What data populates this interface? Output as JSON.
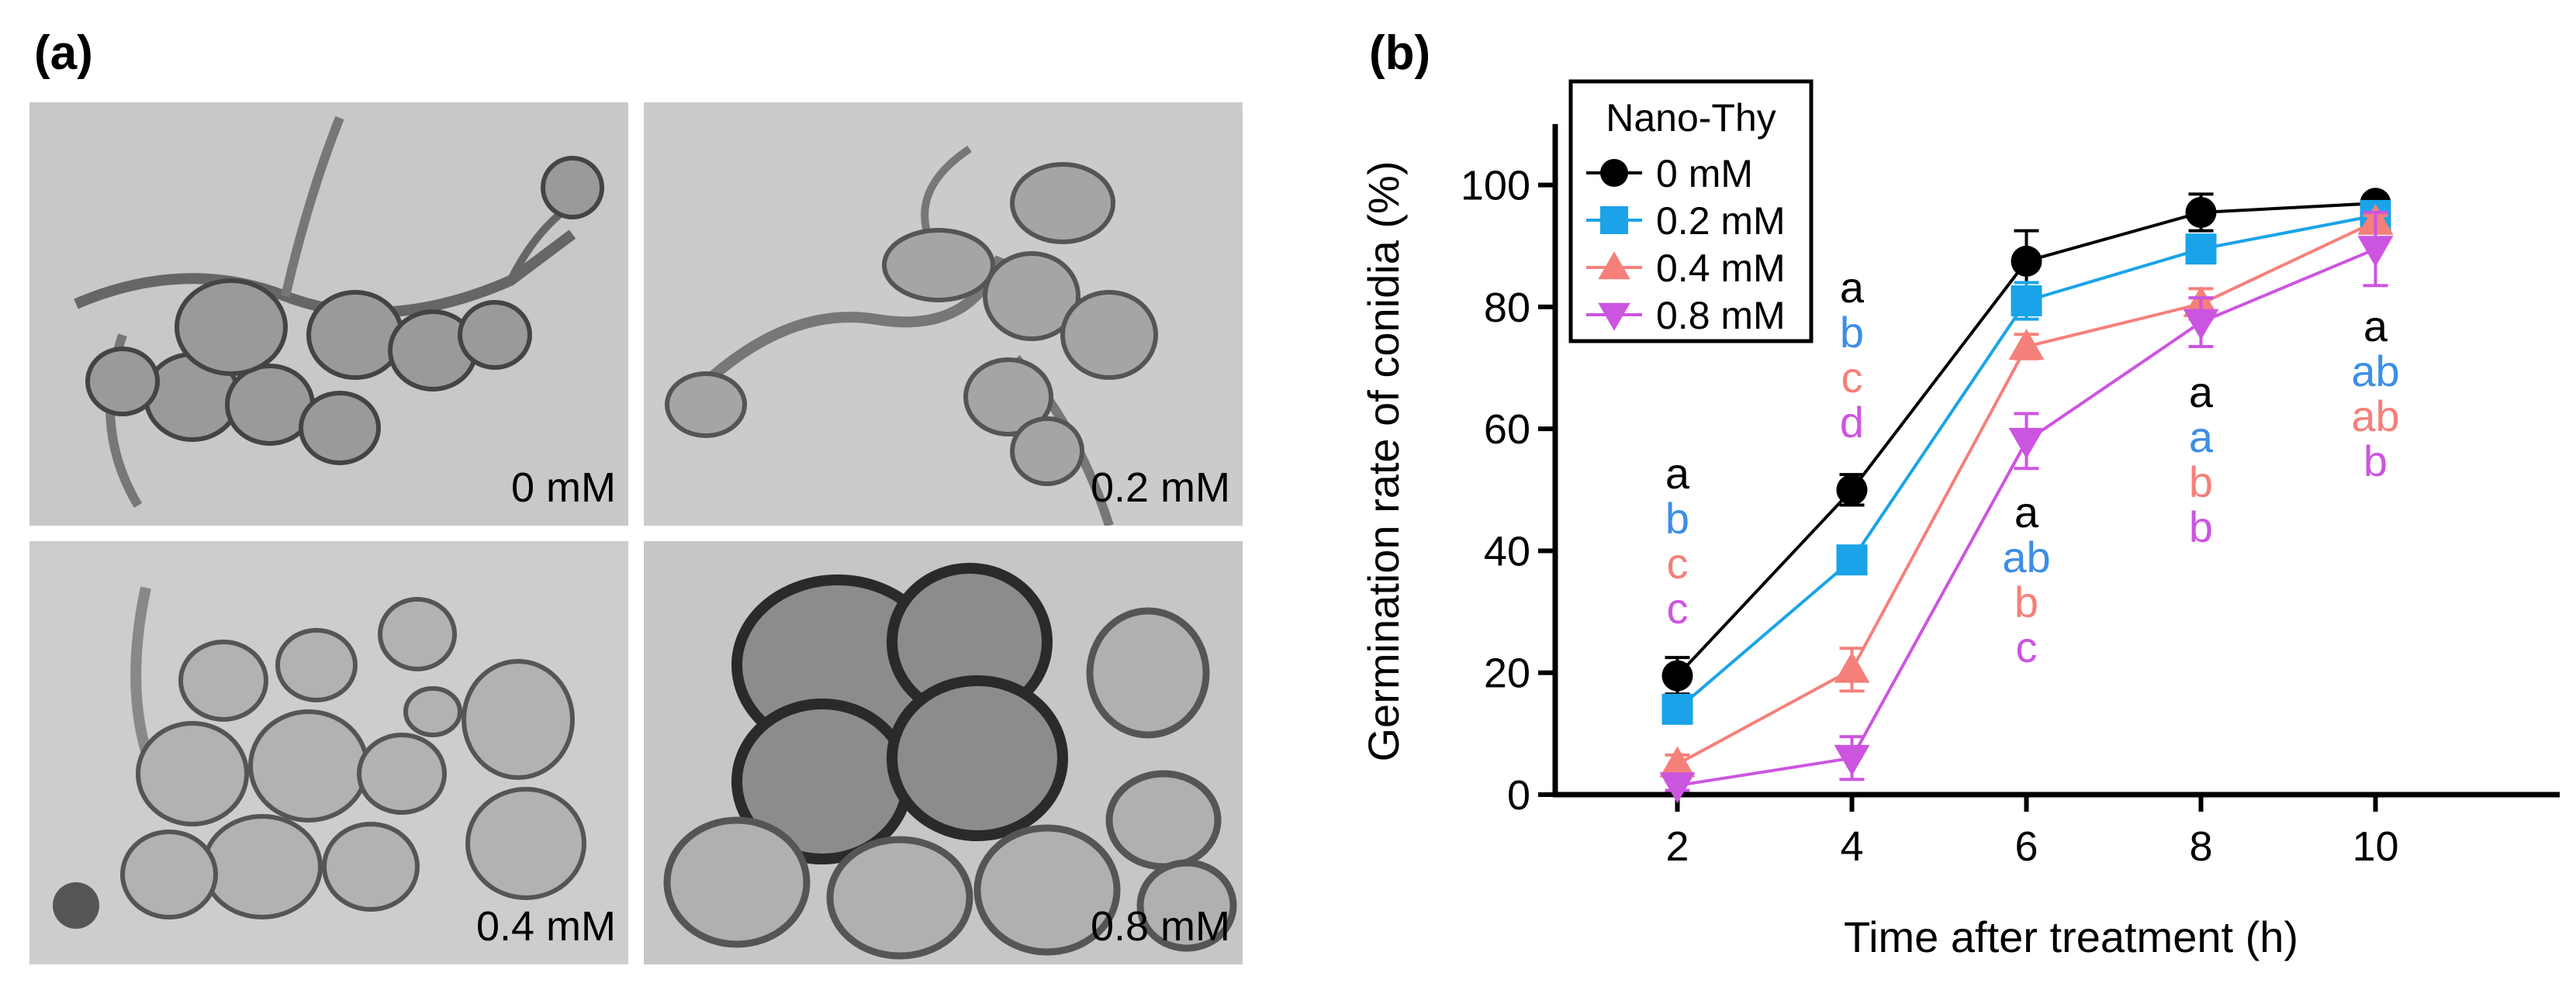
{
  "panel_a": {
    "label": "(a)",
    "images": [
      {
        "label": "0 mM",
        "description": "cluster of germinating conidia with hyphae"
      },
      {
        "label": "0.2 mM",
        "description": "conidia with germ tubes"
      },
      {
        "label": "0.4 mM",
        "description": "cluster of swollen conidia"
      },
      {
        "label": "0.8 mM",
        "description": "dark deformed conidia cluster"
      }
    ]
  },
  "panel_b": {
    "label": "(b)"
  },
  "chart_data": {
    "type": "line",
    "xlabel": "Time after treatment (h)",
    "ylabel": "Germination rate of conidia (%)",
    "x": [
      2,
      4,
      6,
      8,
      10
    ],
    "xlim": [
      0.6,
      12.2
    ],
    "ylim": [
      0,
      110
    ],
    "xticks": [
      2,
      4,
      6,
      8,
      10
    ],
    "yticks": [
      0,
      20,
      40,
      60,
      80,
      100
    ],
    "grid": false,
    "legend": {
      "title": "Nano-Thy",
      "placement": "top-left"
    },
    "series": [
      {
        "name": "0 mM",
        "color": "#000000",
        "marker": "circle",
        "values": [
          19.5,
          50,
          87.5,
          95.5,
          97
        ],
        "errors": [
          3,
          2.5,
          5,
          3,
          1
        ]
      },
      {
        "name": "0.2 mM",
        "color": "#1aa3e8",
        "marker": "square",
        "values": [
          14,
          38.5,
          81,
          89.5,
          95
        ],
        "errors": [
          2,
          1,
          3,
          1.5,
          1
        ]
      },
      {
        "name": "0.4 mM",
        "color": "#f5807a",
        "marker": "triangle-up",
        "values": [
          5,
          20.5,
          73.5,
          80.5,
          94
        ],
        "errors": [
          1.5,
          3.5,
          2,
          2.5,
          1
        ]
      },
      {
        "name": "0.8 mM",
        "color": "#cc55e0",
        "marker": "triangle-down",
        "values": [
          1.5,
          6,
          58,
          77.5,
          89.5
        ],
        "errors": [
          0.8,
          3.5,
          4.5,
          4,
          6
        ]
      }
    ],
    "annotations": [
      {
        "x": 2,
        "letters": [
          {
            "text": "a",
            "color": "#000000"
          },
          {
            "text": "b",
            "color": "#3d8ee6"
          },
          {
            "text": "c",
            "color": "#f5807a"
          },
          {
            "text": "c",
            "color": "#cc55e0"
          }
        ]
      },
      {
        "x": 4,
        "letters": [
          {
            "text": "a",
            "color": "#000000"
          },
          {
            "text": "b",
            "color": "#3d8ee6"
          },
          {
            "text": "c",
            "color": "#f5807a"
          },
          {
            "text": "d",
            "color": "#cc55e0"
          }
        ]
      },
      {
        "x": 6,
        "letters": [
          {
            "text": "a",
            "color": "#000000"
          },
          {
            "text": "ab",
            "color": "#3d8ee6"
          },
          {
            "text": "b",
            "color": "#f5807a"
          },
          {
            "text": "c",
            "color": "#cc55e0"
          }
        ]
      },
      {
        "x": 8,
        "letters": [
          {
            "text": "a",
            "color": "#000000"
          },
          {
            "text": "a",
            "color": "#3d8ee6"
          },
          {
            "text": "b",
            "color": "#f5807a"
          },
          {
            "text": "b",
            "color": "#cc55e0"
          }
        ]
      },
      {
        "x": 10,
        "letters": [
          {
            "text": "a",
            "color": "#000000"
          },
          {
            "text": "ab",
            "color": "#3d8ee6"
          },
          {
            "text": "ab",
            "color": "#f5807a"
          },
          {
            "text": "b",
            "color": "#cc55e0"
          }
        ]
      }
    ]
  }
}
